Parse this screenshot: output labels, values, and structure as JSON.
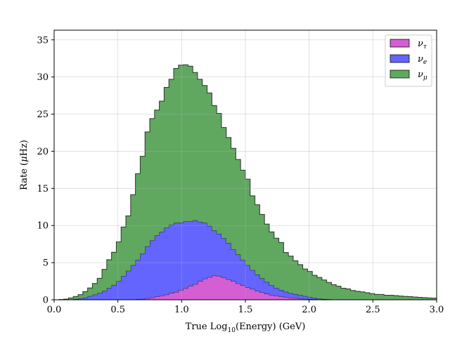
{
  "chart_data": {
    "type": "area",
    "stacked": true,
    "step": true,
    "xlabel": {
      "prefix": "True ",
      "mid": "Log",
      "sub": "10",
      "suffix": "(Energy) (GeV)"
    },
    "ylabel": {
      "prefix": "Rate (",
      "mu": "μ",
      "suffix": "Hz)"
    },
    "xlim": [
      0.0,
      3.0
    ],
    "ylim": [
      0,
      36.3
    ],
    "xticks": [
      "0.0",
      "0.5",
      "1.0",
      "1.5",
      "2.0",
      "2.5",
      "3.0"
    ],
    "yticks": [
      "0",
      "5",
      "10",
      "15",
      "20",
      "25",
      "30",
      "35"
    ],
    "grid": true,
    "legend_position": "top-right",
    "bin_width": 0.0375,
    "legend": [
      {
        "key": "nu_tau",
        "base": "ν",
        "sub": "τ"
      },
      {
        "key": "nu_e",
        "base": "ν",
        "sub": "e"
      },
      {
        "key": "nu_mu",
        "base": "ν",
        "sub": "μ"
      }
    ],
    "series": [
      {
        "key": "nu_tau",
        "color": "#d35fd3",
        "values": [
          0,
          0,
          0,
          0,
          0,
          0,
          0,
          0,
          0,
          0,
          0,
          0,
          0,
          0,
          0,
          0,
          0.05,
          0.08,
          0.12,
          0.2,
          0.3,
          0.45,
          0.55,
          0.7,
          0.9,
          1.05,
          1.3,
          1.55,
          1.85,
          2.1,
          2.5,
          2.85,
          3.05,
          3.25,
          3.2,
          3.0,
          2.75,
          2.5,
          2.2,
          1.95,
          1.65,
          1.45,
          1.2,
          1.0,
          0.8,
          0.65,
          0.55,
          0.45,
          0.35,
          0.28,
          0.22,
          0.16,
          0.12,
          0.1,
          0.08,
          0.06,
          0.05,
          0.04,
          0.03,
          0.03,
          0.02,
          0.02,
          0.01,
          0.01,
          0.01,
          0,
          0,
          0,
          0,
          0,
          0,
          0,
          0,
          0,
          0,
          0,
          0,
          0,
          0,
          0
        ]
      },
      {
        "key": "nu_e",
        "color": "#6464ff",
        "values": [
          0,
          0,
          0,
          0.05,
          0.1,
          0.2,
          0.3,
          0.5,
          0.7,
          0.9,
          1.2,
          1.6,
          2.0,
          2.5,
          3.2,
          3.9,
          4.6,
          5.3,
          6.1,
          7.0,
          7.7,
          8.2,
          8.6,
          9.0,
          9.2,
          9.3,
          9.1,
          9.0,
          8.7,
          8.6,
          8.0,
          7.5,
          6.9,
          6.1,
          5.7,
          5.3,
          4.9,
          4.3,
          3.9,
          3.4,
          3.0,
          2.55,
          2.2,
          1.9,
          1.6,
          1.3,
          1.05,
          0.87,
          0.72,
          0.61,
          0.54,
          0.48,
          0.38,
          0.27,
          0.17,
          0.1,
          0.05,
          0.03,
          0.02,
          0.01,
          0.01,
          0,
          0,
          0,
          0,
          0,
          0,
          0,
          0,
          0,
          0,
          0,
          0,
          0,
          0,
          0,
          0,
          0,
          0,
          0
        ]
      },
      {
        "key": "nu_mu",
        "color": "#60a860",
        "values": [
          0,
          0.05,
          0.1,
          0.2,
          0.35,
          0.5,
          0.8,
          1.1,
          1.5,
          2.0,
          2.9,
          3.8,
          4.4,
          5.3,
          6.6,
          7.4,
          9.5,
          11.6,
          13.1,
          15.4,
          16.4,
          16.9,
          17.6,
          18.9,
          19.6,
          20.8,
          21.2,
          21.1,
          20.9,
          19.9,
          19.2,
          18.5,
          17.9,
          16.8,
          16.2,
          14.9,
          14.2,
          13.6,
          12.8,
          12.1,
          11.6,
          10.0,
          9.4,
          8.6,
          7.8,
          7.2,
          6.7,
          6.4,
          5.3,
          5.0,
          4.5,
          4.1,
          3.65,
          3.45,
          3.05,
          2.85,
          2.57,
          2.27,
          1.98,
          1.79,
          1.53,
          1.44,
          1.24,
          1.14,
          1.05,
          0.96,
          0.84,
          0.73,
          0.72,
          0.62,
          0.61,
          0.57,
          0.51,
          0.46,
          0.43,
          0.38,
          0.33,
          0.29,
          0.25,
          0.22
        ]
      }
    ]
  }
}
